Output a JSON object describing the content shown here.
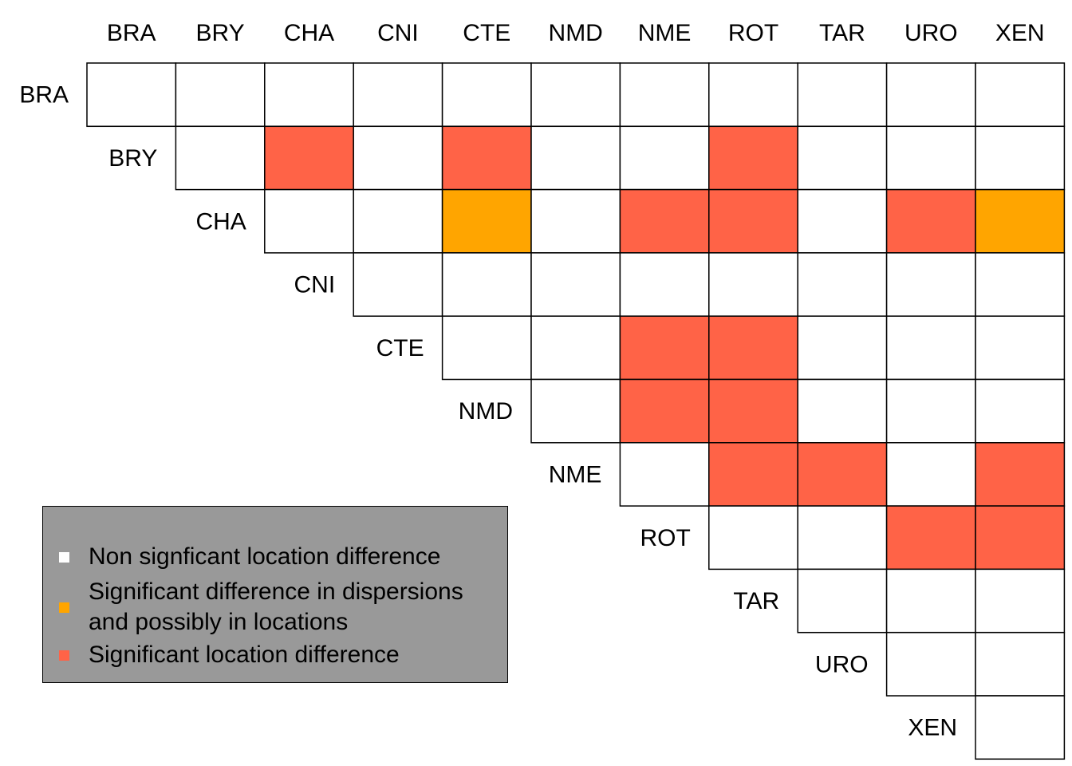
{
  "chart_data": {
    "type": "heatmap",
    "title": "",
    "categories": [
      "BRA",
      "BRY",
      "CHA",
      "CNI",
      "CTE",
      "NMD",
      "NME",
      "ROT",
      "TAR",
      "URO",
      "XEN"
    ],
    "status_codes": {
      "0": "non_significant",
      "1": "dispersion",
      "2": "location"
    },
    "matrix": [
      [
        0,
        0,
        0,
        0,
        0,
        0,
        0,
        0,
        0,
        0
      ],
      [
        2,
        0,
        2,
        0,
        0,
        2,
        0,
        0,
        0
      ],
      [
        0,
        1,
        0,
        2,
        2,
        0,
        2,
        1
      ],
      [
        0,
        0,
        0,
        0,
        0,
        0,
        0
      ],
      [
        0,
        2,
        2,
        0,
        0,
        0
      ],
      [
        2,
        2,
        0,
        0,
        0
      ],
      [
        2,
        2,
        0,
        2
      ],
      [
        0,
        2,
        2
      ],
      [
        0,
        0
      ],
      [
        0
      ]
    ],
    "colors": {
      "non_significant": "#ffffff",
      "dispersion": "#ffa500",
      "location": "#ff6347",
      "grid": "#000000",
      "legend_background": "#999999"
    },
    "legend": {
      "placement": "bottom-left",
      "entries": [
        {
          "key": "non_significant",
          "lines": [
            "Non signficant location difference"
          ]
        },
        {
          "key": "dispersion",
          "lines": [
            "Significant difference in dispersions",
            "and possibly in locations"
          ]
        },
        {
          "key": "location",
          "lines": [
            "Significant location difference"
          ]
        }
      ]
    }
  }
}
